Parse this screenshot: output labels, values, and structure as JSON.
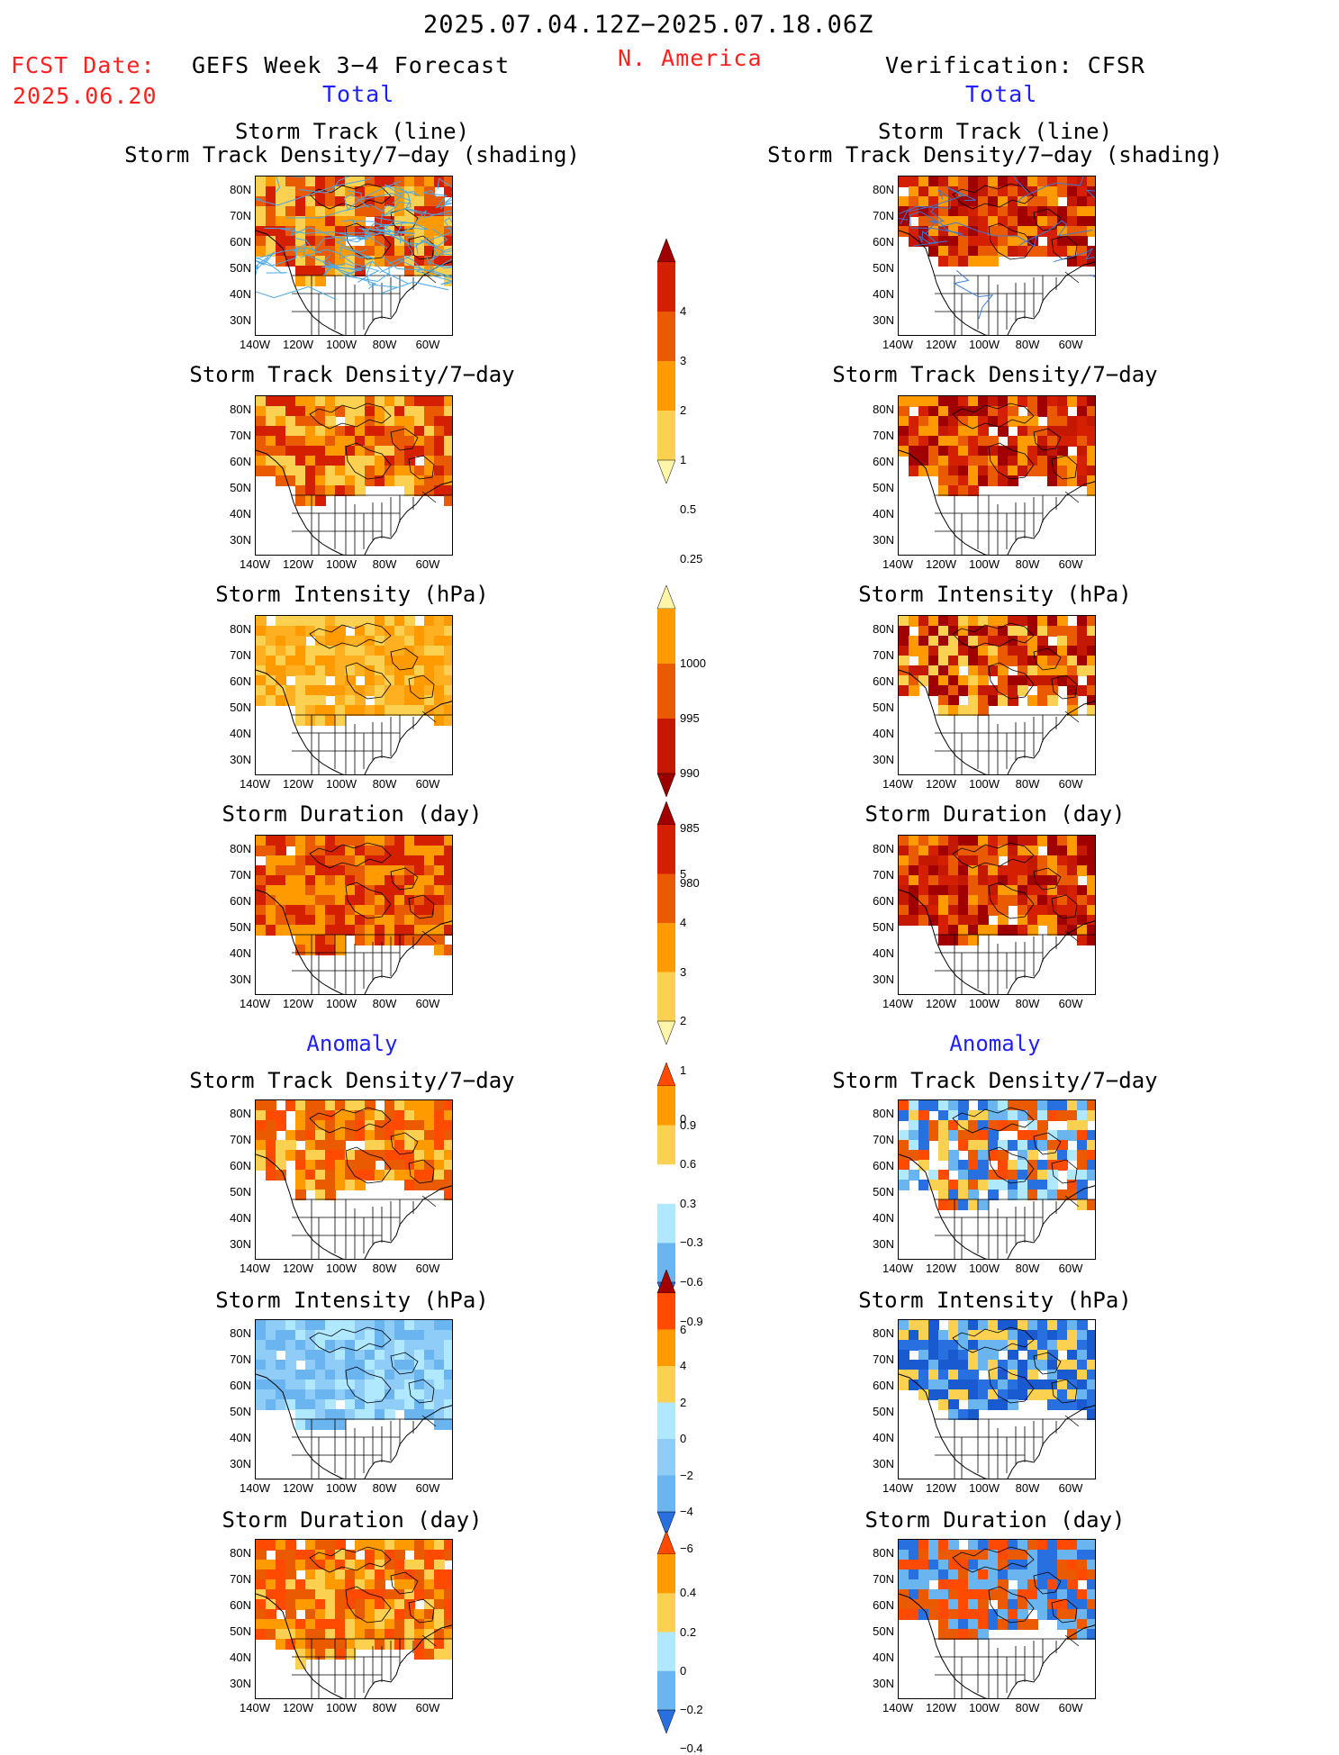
{
  "header": {
    "date_range": "2025.07.04.12Z−2025.07.18.06Z",
    "fcst_label": "FCST Date:",
    "fcst_date": "2025.06.20",
    "left_title": "GEFS Week 3−4 Forecast",
    "region": "N. America",
    "right_title": "Verification: CFSR"
  },
  "sections": {
    "total": "Total",
    "anomaly": "Anomaly"
  },
  "panel_titles": {
    "track_line": "Storm Track (line)",
    "track_density_shading": "Storm Track Density/7−day (shading)",
    "track_density": "Storm Track Density/7−day",
    "intensity": "Storm Intensity (hPa)",
    "duration": "Storm Duration (day)"
  },
  "axes": {
    "lat_labels": [
      "80N",
      "70N",
      "60N",
      "50N",
      "40N",
      "30N"
    ],
    "lon_labels": [
      "140W",
      "120W",
      "100W",
      "80W",
      "60W"
    ]
  },
  "colorbars": [
    {
      "name": "density-total",
      "labels": [
        "4",
        "3",
        "2",
        "1",
        "0.5",
        "0.25"
      ],
      "colors": [
        "#a00000",
        "#d42000",
        "#ea5a00",
        "#ff9a00",
        "#fcd050",
        "#fff5a8"
      ]
    },
    {
      "name": "intensity-total",
      "labels": [
        "1000",
        "995",
        "990",
        "985",
        "980"
      ],
      "colors": [
        "#fff5a8",
        "#ff9a00",
        "#ea5a00",
        "#c41800",
        "#9a0000"
      ]
    },
    {
      "name": "duration-total",
      "labels": [
        "5",
        "4",
        "3",
        "2",
        "1",
        "0"
      ],
      "colors": [
        "#a00000",
        "#d42000",
        "#ea5a00",
        "#ff9a00",
        "#fcd050",
        "#fff5a8"
      ]
    },
    {
      "name": "density-anomaly",
      "labels": [
        "0.9",
        "0.6",
        "0.3",
        "−0.3",
        "−0.6",
        "−0.9"
      ],
      "colors": [
        "#ff4a00",
        "#ff9a00",
        "#fcd050",
        "#ffffff",
        "#b0e8ff",
        "#6ab4f0",
        "#2870e0"
      ]
    },
    {
      "name": "intensity-anomaly",
      "labels": [
        "6",
        "4",
        "2",
        "0",
        "−2",
        "−4",
        "−6"
      ],
      "colors": [
        "#a00000",
        "#ff4a00",
        "#ff9a00",
        "#fcd050",
        "#b0e8ff",
        "#90ccf8",
        "#6ab4f0",
        "#2870e0"
      ]
    },
    {
      "name": "duration-anomaly",
      "labels": [
        "0.4",
        "0.2",
        "0",
        "−0.2",
        "−0.4"
      ],
      "colors": [
        "#ff4a00",
        "#ff9a00",
        "#fcd050",
        "#b0e8ff",
        "#6ab4f0",
        "#2870e0"
      ]
    }
  ],
  "palette": {
    "storm_track_lines": "#4aa8e8",
    "verification_track_lines": "#3a7ad8",
    "map_outline": "#000000"
  }
}
